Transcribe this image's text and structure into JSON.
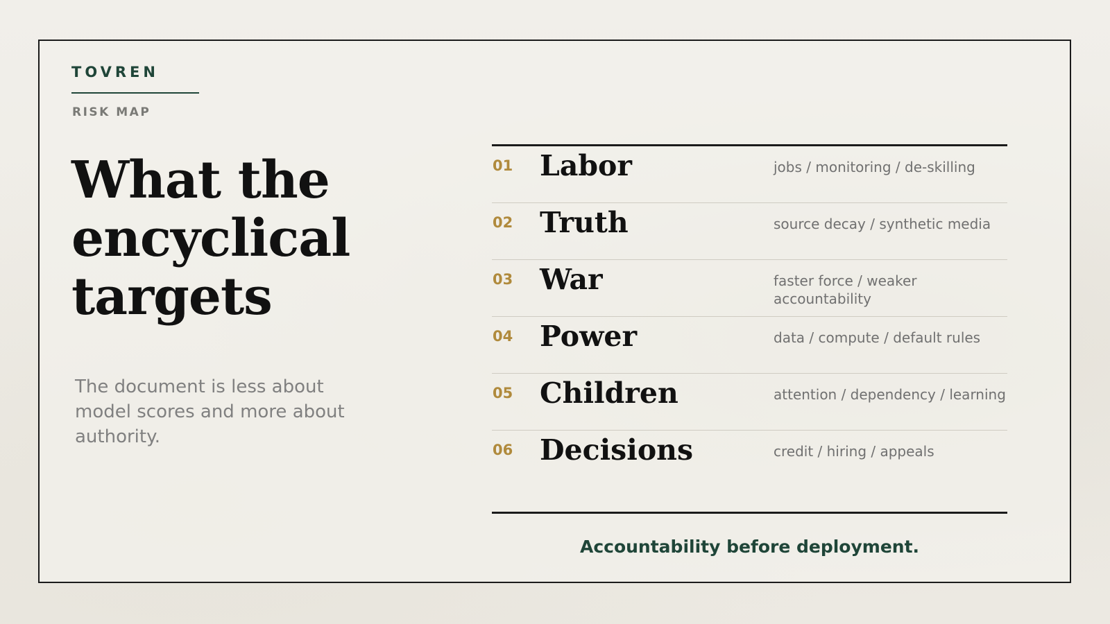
{
  "brand": {
    "name": "TOVREN",
    "kicker": "RISK MAP"
  },
  "headline": "What the encyclical targets",
  "lede": "The document is less about model scores and more about authority.",
  "risks": [
    {
      "num": "01",
      "title": "Labor",
      "tags": "jobs / monitoring / de-skilling"
    },
    {
      "num": "02",
      "title": "Truth",
      "tags": "source decay / synthetic media"
    },
    {
      "num": "03",
      "title": "War",
      "tags": "faster force / weaker accountability"
    },
    {
      "num": "04",
      "title": "Power",
      "tags": "data / compute / default rules"
    },
    {
      "num": "05",
      "title": "Children",
      "tags": "attention / dependency / learning"
    },
    {
      "num": "06",
      "title": "Decisions",
      "tags": "credit / hiring / appeals"
    }
  ],
  "footer": "Accountability before deployment.",
  "colors": {
    "accent": "#1f4538",
    "number": "#b08a3c",
    "ink": "#111111",
    "muted": "#707070"
  }
}
